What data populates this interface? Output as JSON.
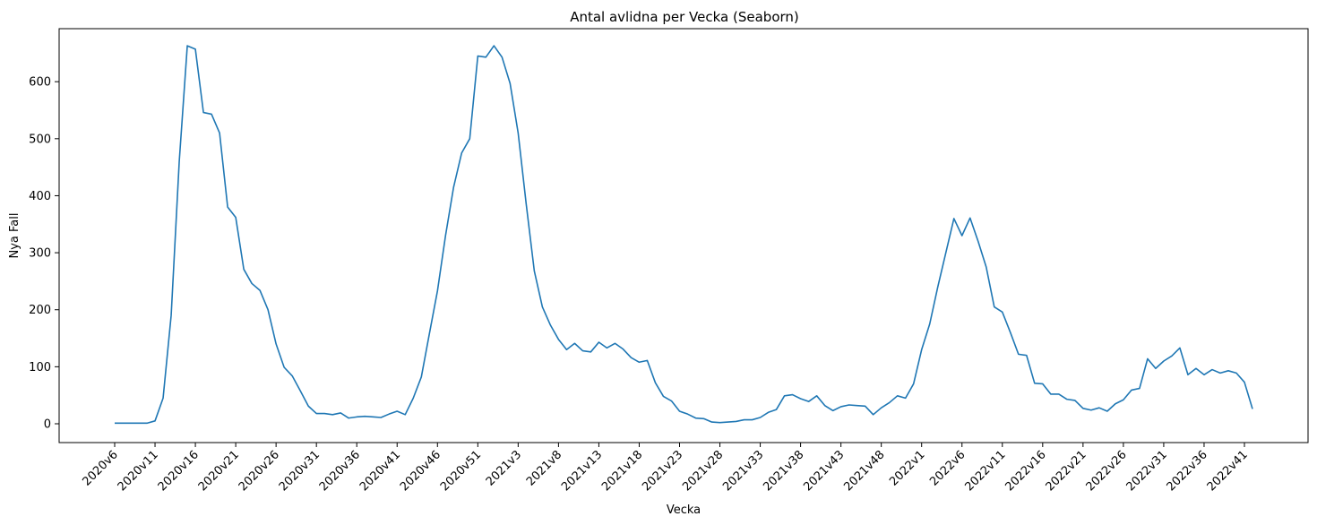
{
  "chart_data": {
    "type": "line",
    "title": "Antal avlidna per Vecka (Seaborn)",
    "xlabel": "Vecka",
    "ylabel": "Nya Fall",
    "ylim": [
      -33,
      693
    ],
    "yticks": [
      0,
      100,
      200,
      300,
      400,
      500,
      600
    ],
    "grid": false,
    "line_color": "#1f77b4",
    "xtick_labels": [
      "2020v6",
      "2020v11",
      "2020v16",
      "2020v21",
      "2020v26",
      "2020v31",
      "2020v36",
      "2020v41",
      "2020v46",
      "2020v51",
      "2021v3",
      "2021v8",
      "2021v13",
      "2021v18",
      "2021v23",
      "2021v28",
      "2021v33",
      "2021v38",
      "2021v43",
      "2021v48",
      "2022v1",
      "2022v6",
      "2022v11",
      "2022v16",
      "2022v21",
      "2022v26",
      "2022v31",
      "2022v36",
      "2022v41"
    ],
    "series": [
      {
        "values": [
          1,
          1,
          1,
          1,
          1,
          5,
          45,
          190,
          460,
          663,
          657,
          546,
          543,
          510,
          380,
          362,
          271,
          246,
          234,
          200,
          140,
          99,
          84,
          58,
          31,
          18,
          18,
          16,
          19,
          10,
          12,
          13,
          12,
          11,
          17,
          22,
          16,
          45,
          82,
          158,
          233,
          330,
          415,
          475,
          500,
          645,
          643,
          663,
          643,
          597,
          510,
          385,
          268,
          205,
          173,
          148,
          130,
          141,
          128,
          126,
          143,
          133,
          141,
          131,
          116,
          108,
          111,
          72,
          48,
          40,
          22,
          17,
          10,
          9,
          3,
          2,
          3,
          4,
          7,
          7,
          11,
          20,
          25,
          49,
          51,
          44,
          39,
          49,
          32,
          23,
          30,
          33,
          32,
          31,
          16,
          28,
          37,
          49,
          45,
          70,
          130,
          175,
          240,
          300,
          360,
          330,
          361,
          320,
          275,
          205,
          196,
          160,
          122,
          120,
          71,
          70,
          52,
          52,
          43,
          41,
          27,
          24,
          28,
          22,
          35,
          42,
          59,
          62,
          114,
          97,
          110,
          119,
          133,
          86,
          97,
          86,
          95,
          89,
          93,
          89,
          73,
          26
        ]
      }
    ]
  }
}
